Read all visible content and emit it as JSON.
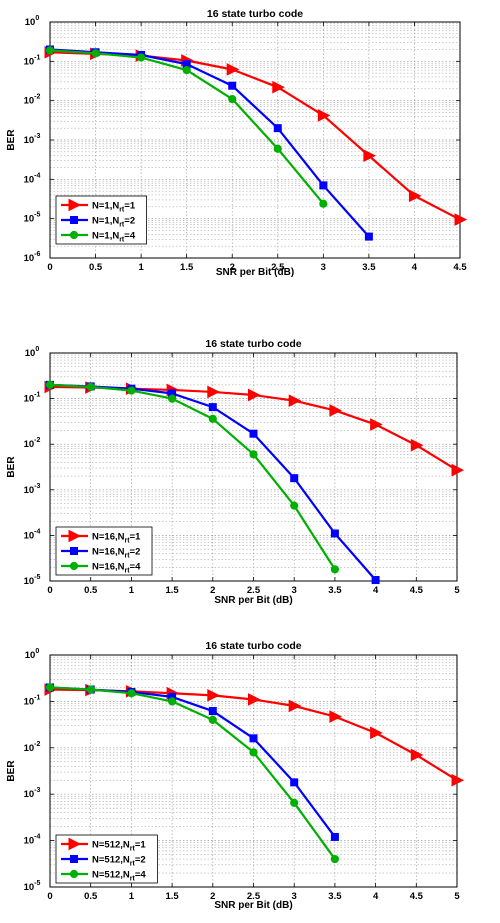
{
  "chart_data": [
    {
      "type": "line",
      "title": "16 state turbo code",
      "xlabel": "SNR per Bit (dB)",
      "ylabel": "BER",
      "yscale": "log",
      "xlim": [
        0,
        4.5
      ],
      "ylim": [
        1e-06,
        1
      ],
      "xticks": [
        "0",
        "0.5",
        "1",
        "1.5",
        "2",
        "2.5",
        "3",
        "3.5",
        "4",
        "4.5"
      ],
      "yticks": [
        {
          "base": "10",
          "exp": "0"
        },
        {
          "base": "10",
          "exp": "-1"
        },
        {
          "base": "10",
          "exp": "-2"
        },
        {
          "base": "10",
          "exp": "-3"
        },
        {
          "base": "10",
          "exp": "-4"
        },
        {
          "base": "10",
          "exp": "-5"
        },
        {
          "base": "10",
          "exp": "-6"
        }
      ],
      "grid": true,
      "legend_position": "bottom-left",
      "series": [
        {
          "name": "N=1,N",
          "sub": "rt",
          "suffix": "=1",
          "color": "#ff0000",
          "marker": "triangle-right",
          "x": [
            0,
            0.5,
            1,
            1.5,
            2,
            2.5,
            3,
            3.5,
            4,
            4.5
          ],
          "y": [
            0.17,
            0.155,
            0.14,
            0.105,
            0.062,
            0.022,
            0.0042,
            0.0004,
            3.8e-05,
            9.5e-06
          ]
        },
        {
          "name": "N=1,N",
          "sub": "rt",
          "suffix": "=2",
          "color": "#0000ff",
          "marker": "square",
          "x": [
            0,
            0.5,
            1,
            1.5,
            2,
            2.5,
            3,
            3.5
          ],
          "y": [
            0.2,
            0.17,
            0.145,
            0.085,
            0.024,
            0.002,
            7e-05,
            3.5e-06
          ]
        },
        {
          "name": "N=1,N",
          "sub": "rt",
          "suffix": "=4",
          "color": "#00b000",
          "marker": "circle",
          "x": [
            0,
            0.5,
            1,
            1.5,
            2,
            2.5,
            3
          ],
          "y": [
            0.19,
            0.16,
            0.125,
            0.06,
            0.011,
            0.0006,
            2.4e-05
          ]
        }
      ]
    },
    {
      "type": "line",
      "title": "16 state turbo code",
      "xlabel": "SNR per Bit (dB)",
      "ylabel": "BER",
      "yscale": "log",
      "xlim": [
        0,
        5
      ],
      "ylim": [
        1e-05,
        1
      ],
      "xticks": [
        "0",
        "0.5",
        "1",
        "1.5",
        "2",
        "2.5",
        "3",
        "3.5",
        "4",
        "4.5",
        "5"
      ],
      "yticks": [
        {
          "base": "10",
          "exp": "0"
        },
        {
          "base": "10",
          "exp": "-1"
        },
        {
          "base": "10",
          "exp": "-2"
        },
        {
          "base": "10",
          "exp": "-3"
        },
        {
          "base": "10",
          "exp": "-4"
        },
        {
          "base": "10",
          "exp": "-5"
        }
      ],
      "grid": true,
      "legend_position": "bottom-left",
      "series": [
        {
          "name": "N=16,N",
          "sub": "rt",
          "suffix": "=1",
          "color": "#ff0000",
          "marker": "triangle-right",
          "x": [
            0,
            0.5,
            1,
            1.5,
            2,
            2.5,
            3,
            3.5,
            4,
            4.5,
            5
          ],
          "y": [
            0.18,
            0.175,
            0.165,
            0.155,
            0.14,
            0.12,
            0.09,
            0.055,
            0.027,
            0.0095,
            0.0027
          ]
        },
        {
          "name": "N=16,N",
          "sub": "rt",
          "suffix": "=2",
          "color": "#0000ff",
          "marker": "square",
          "x": [
            0,
            0.5,
            1,
            1.5,
            2,
            2.5,
            3,
            3.5,
            4
          ],
          "y": [
            0.2,
            0.185,
            0.165,
            0.13,
            0.065,
            0.017,
            0.0018,
            0.00011,
            1.05e-05
          ]
        },
        {
          "name": "N=16,N",
          "sub": "rt",
          "suffix": "=4",
          "color": "#00b000",
          "marker": "circle",
          "x": [
            0,
            0.5,
            1,
            1.5,
            2,
            2.5,
            3,
            3.5
          ],
          "y": [
            0.2,
            0.18,
            0.15,
            0.1,
            0.036,
            0.006,
            0.00045,
            1.8e-05
          ]
        }
      ]
    },
    {
      "type": "line",
      "title": "16 state turbo code",
      "xlabel": "SNR per Bit (dB)",
      "ylabel": "BER",
      "yscale": "log",
      "xlim": [
        0,
        5
      ],
      "ylim": [
        1e-05,
        1
      ],
      "xticks": [
        "0",
        "0.5",
        "1",
        "1.5",
        "2",
        "2.5",
        "3",
        "3.5",
        "4",
        "4.5",
        "5"
      ],
      "yticks": [
        {
          "base": "10",
          "exp": "0"
        },
        {
          "base": "10",
          "exp": "-1"
        },
        {
          "base": "10",
          "exp": "-2"
        },
        {
          "base": "10",
          "exp": "-3"
        },
        {
          "base": "10",
          "exp": "-4"
        },
        {
          "base": "10",
          "exp": "-5"
        }
      ],
      "grid": true,
      "legend_position": "bottom-left",
      "series": [
        {
          "name": "N=512,N",
          "sub": "rt",
          "suffix": "=1",
          "color": "#ff0000",
          "marker": "triangle-right",
          "x": [
            0,
            0.5,
            1,
            1.5,
            2,
            2.5,
            3,
            3.5,
            4,
            4.5,
            5
          ],
          "y": [
            0.18,
            0.175,
            0.165,
            0.15,
            0.135,
            0.11,
            0.08,
            0.047,
            0.021,
            0.007,
            0.002
          ]
        },
        {
          "name": "N=512,N",
          "sub": "rt",
          "suffix": "=2",
          "color": "#0000ff",
          "marker": "square",
          "x": [
            0,
            0.5,
            1,
            1.5,
            2,
            2.5,
            3,
            3.5
          ],
          "y": [
            0.2,
            0.18,
            0.16,
            0.125,
            0.062,
            0.016,
            0.0018,
            0.00012
          ]
        },
        {
          "name": "N=512,N",
          "sub": "rt",
          "suffix": "=4",
          "color": "#00b000",
          "marker": "circle",
          "x": [
            0,
            0.5,
            1,
            1.5,
            2,
            2.5,
            3,
            3.5
          ],
          "y": [
            0.2,
            0.18,
            0.15,
            0.1,
            0.04,
            0.008,
            0.00065,
            4e-05
          ]
        }
      ]
    }
  ]
}
